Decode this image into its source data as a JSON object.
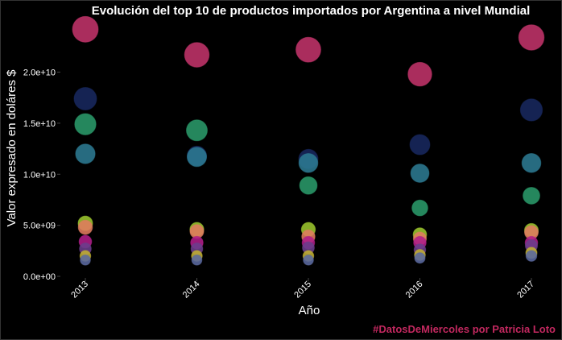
{
  "chart_data": {
    "type": "scatter",
    "title": "Evolución del top 10 de productos importados por Argentina a nivel Mundial",
    "xlabel": "Año",
    "ylabel": "Valor expresado en doláres $",
    "caption": "#DatosDeMiercoles por Patricia Loto",
    "categories": [
      "2013",
      "2014",
      "2015",
      "2016",
      "2017"
    ],
    "y_ticks": [
      "0.0e+00",
      "5.0e+09",
      "1.0e+10",
      "1.5e+10",
      "2.0e+10"
    ],
    "y_tick_values": [
      0,
      5000000000,
      10000000000,
      15000000000,
      20000000000
    ],
    "ylim": [
      0,
      24700000000
    ],
    "grid": false,
    "series": [
      {
        "color": "#c2336a",
        "values": [
          24200000000,
          21700000000,
          22200000000,
          19800000000,
          23400000000
        ]
      },
      {
        "color": "#18285e",
        "values": [
          17400000000,
          11800000000,
          11500000000,
          12900000000,
          16300000000
        ]
      },
      {
        "color": "#2a9a6a",
        "values": [
          14900000000,
          14300000000,
          8900000000,
          6700000000,
          7900000000
        ]
      },
      {
        "color": "#2c7a92",
        "values": [
          12000000000,
          11700000000,
          11100000000,
          10100000000,
          11100000000
        ]
      },
      {
        "color": "#9cc62e",
        "values": [
          5200000000,
          4600000000,
          4600000000,
          4100000000,
          4500000000
        ]
      },
      {
        "color": "#e07c5e",
        "values": [
          4800000000,
          4400000000,
          3900000000,
          3700000000,
          4300000000
        ]
      },
      {
        "color": "#b01e8a",
        "values": [
          3400000000,
          3300000000,
          3300000000,
          3300000000,
          3300000000
        ]
      },
      {
        "color": "#6a3d8c",
        "values": [
          2700000000,
          2700000000,
          2800000000,
          2600000000,
          3000000000
        ]
      },
      {
        "color": "#c2b032",
        "values": [
          2000000000,
          2000000000,
          2000000000,
          2100000000,
          2300000000
        ]
      },
      {
        "color": "#5b6aa0",
        "values": [
          1600000000,
          1600000000,
          1600000000,
          1800000000,
          2000000000
        ]
      }
    ]
  }
}
